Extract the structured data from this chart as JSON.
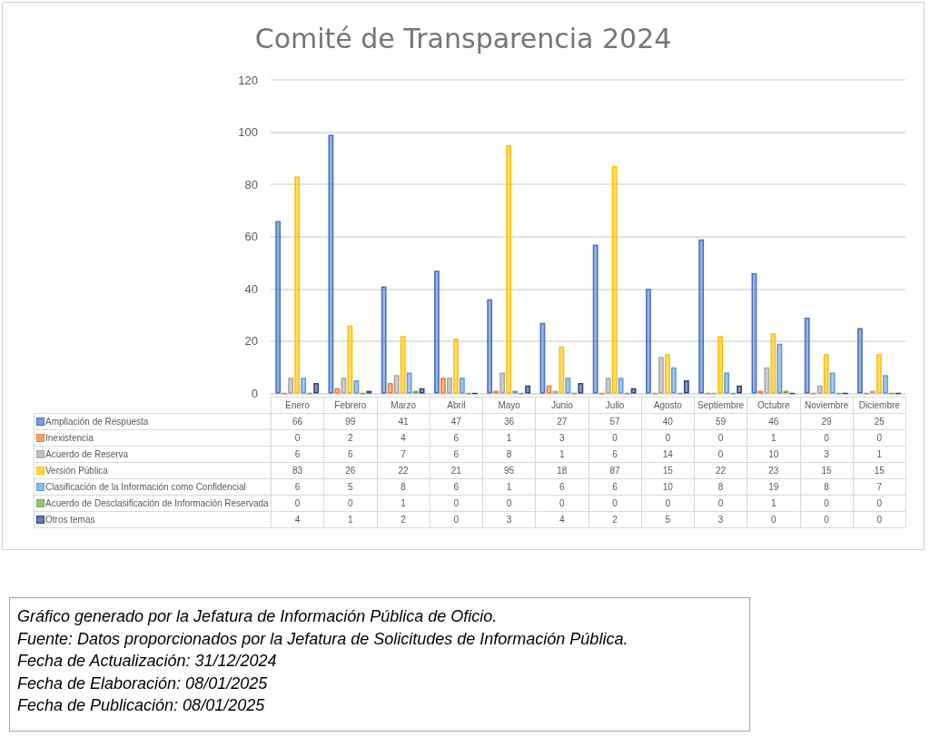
{
  "chart_data": {
    "type": "bar",
    "title": "Comité de Transparencia 2024",
    "categories": [
      "Enero",
      "Febrero",
      "Marzo",
      "Abril",
      "Mayo",
      "Junio",
      "Julio",
      "Agosto",
      "Septiembre",
      "Octubre",
      "Noviembre",
      "Diciembre"
    ],
    "series": [
      {
        "name": "Ampliación de Respuesta",
        "color": "#4472c4",
        "values": [
          66,
          99,
          41,
          47,
          36,
          27,
          57,
          40,
          59,
          46,
          29,
          25
        ]
      },
      {
        "name": "Inexistencia",
        "color": "#ed7d31",
        "values": [
          0,
          2,
          4,
          6,
          1,
          3,
          0,
          0,
          0,
          1,
          0,
          0
        ]
      },
      {
        "name": "Acuerdo de Reserva",
        "color": "#a5a5a5",
        "values": [
          6,
          6,
          7,
          6,
          8,
          1,
          6,
          14,
          0,
          10,
          3,
          1
        ]
      },
      {
        "name": "Versión Pública",
        "color": "#ffc000",
        "values": [
          83,
          26,
          22,
          21,
          95,
          18,
          87,
          15,
          22,
          23,
          15,
          15
        ]
      },
      {
        "name": "Clasificación de la Información como Confidencial",
        "color": "#5b9bd5",
        "values": [
          6,
          5,
          8,
          6,
          1,
          6,
          6,
          10,
          8,
          19,
          8,
          7
        ]
      },
      {
        "name": "Acuerdo de Desclasificación de Información Reservada",
        "color": "#70ad47",
        "values": [
          0,
          0,
          1,
          0,
          0,
          0,
          0,
          0,
          0,
          1,
          0,
          0
        ]
      },
      {
        "name": "Otros temas",
        "color": "#264478",
        "values": [
          4,
          1,
          2,
          0,
          3,
          4,
          2,
          5,
          3,
          0,
          0,
          0
        ]
      }
    ],
    "ylim": [
      0,
      120
    ],
    "yticks": [
      0,
      20,
      40,
      60,
      80,
      100,
      120
    ],
    "grid": "y",
    "legend": "bottom",
    "data_labels": true,
    "annotations": [
      "Gráfico generado por la Jefatura de Información Pública de Oficio.",
      "Fuente: Datos proporcionados por la Jefatura de Solicitudes de Información Pública.",
      "Fecha de Actualización: 31/12/2024",
      "Fecha de Elaboración: 08/01/2025",
      "Fecha de Publicación: 08/01/2025"
    ]
  }
}
